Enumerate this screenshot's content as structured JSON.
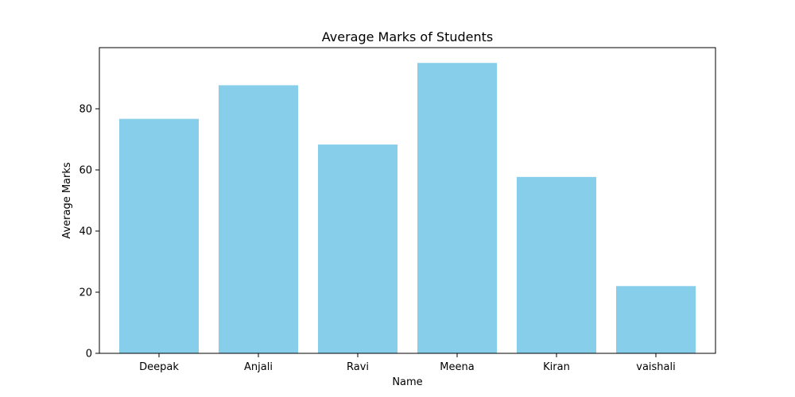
{
  "chart_data": {
    "type": "bar",
    "title": "Average Marks of Students",
    "xlabel": "Name",
    "ylabel": "Average Marks",
    "categories": [
      "Deepak",
      "Anjali",
      "Ravi",
      "Meena",
      "Kiran",
      "vaishali"
    ],
    "values": [
      76.7,
      87.7,
      68.3,
      95.0,
      57.7,
      22.0
    ],
    "ylim": [
      0,
      100
    ],
    "yticks": [
      0,
      20,
      40,
      60,
      80
    ],
    "bar_color": "#87CEEB",
    "grid": false,
    "legend": "none"
  }
}
